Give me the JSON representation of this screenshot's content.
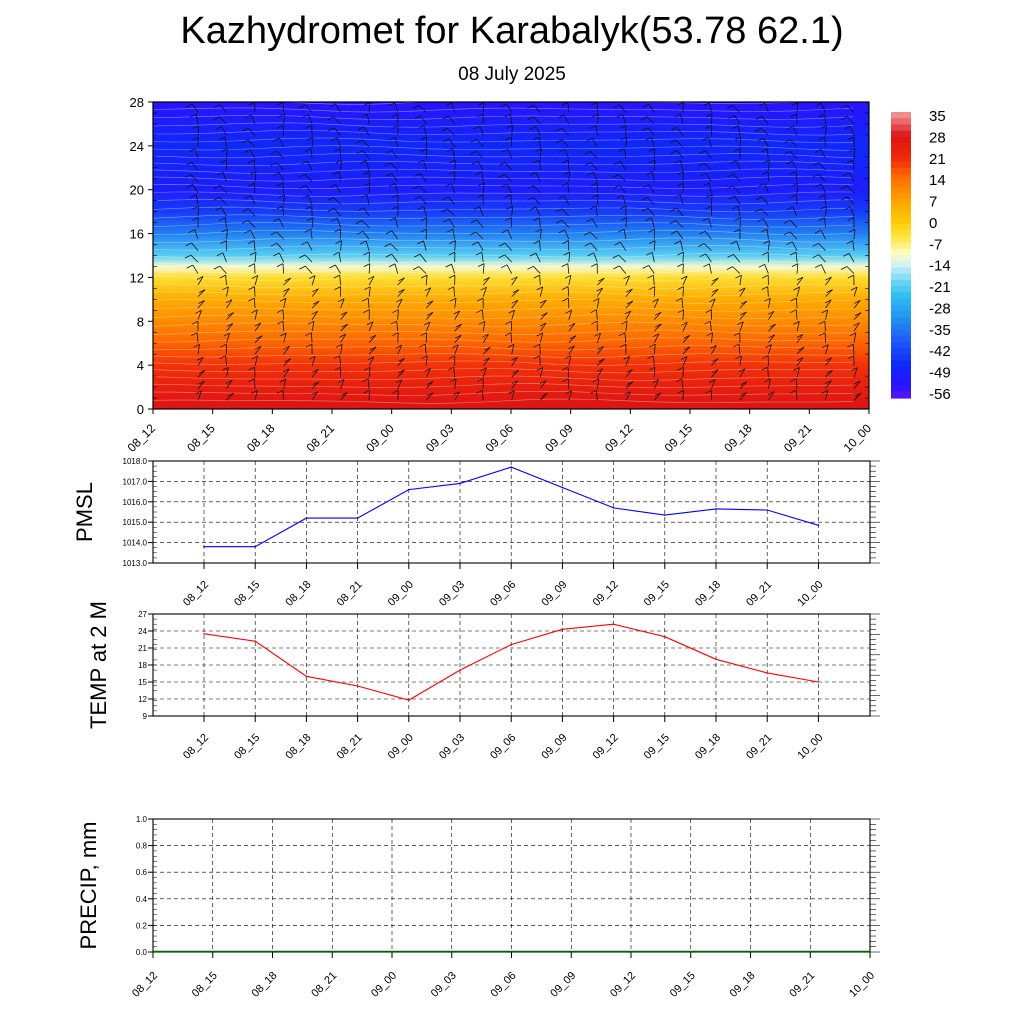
{
  "title": "Kazhydromet for Karabalyk(53.78 62.1)",
  "subtitle": "08 July 2025",
  "chart_data": [
    {
      "type": "heatmap",
      "title": "Kazhydromet for Karabalyk(53.78 62.1)",
      "subtitle": "08 July 2025",
      "x_labels": [
        "08_12",
        "08_15",
        "08_18",
        "08_21",
        "09_00",
        "09_03",
        "09_06",
        "09_09",
        "09_12",
        "09_15",
        "09_18",
        "09_21",
        "10_00"
      ],
      "y_ticks": [
        0,
        4,
        8,
        12,
        16,
        20,
        24,
        28
      ],
      "ylim": [
        0,
        28
      ],
      "colorbar_labels": [
        "35",
        "28",
        "21",
        "14",
        "7",
        "0",
        "-7",
        "-14",
        "-21",
        "-28",
        "-35",
        "-42",
        "-49",
        "-56"
      ],
      "temperature_profile": [
        {
          "level": 0,
          "value": 28
        },
        {
          "level": 2,
          "value": 24
        },
        {
          "level": 4,
          "value": 20
        },
        {
          "level": 6,
          "value": 15
        },
        {
          "level": 8,
          "value": 10
        },
        {
          "level": 10,
          "value": 5
        },
        {
          "level": 12,
          "value": -4
        },
        {
          "level": 13,
          "value": -12
        },
        {
          "level": 14,
          "value": -22
        },
        {
          "level": 16,
          "value": -35
        },
        {
          "level": 18,
          "value": -45
        },
        {
          "level": 20,
          "value": -52
        },
        {
          "level": 24,
          "value": -48
        },
        {
          "level": 28,
          "value": -55
        }
      ],
      "wind_barbs": true
    },
    {
      "type": "line",
      "ylabel": "PMSL",
      "categories": [
        "08_12",
        "08_15",
        "08_18",
        "08_21",
        "09_00",
        "09_03",
        "09_06",
        "09_09",
        "09_12",
        "09_15",
        "09_18",
        "09_21",
        "10_00"
      ],
      "values": [
        1013.8,
        1013.8,
        1015.2,
        1015.2,
        1016.6,
        1016.9,
        1017.7,
        1016.7,
        1015.7,
        1015.35,
        1015.65,
        1015.6,
        1014.85
      ],
      "ylim": [
        1013.0,
        1018.0
      ],
      "y_ticks": [
        "1013.0",
        "1014.0",
        "1015.0",
        "1016.0",
        "1017.0",
        "1018.0"
      ],
      "color": "#0000ff",
      "grid": true
    },
    {
      "type": "line",
      "ylabel": "TEMP at 2 M",
      "categories": [
        "08_12",
        "08_15",
        "08_18",
        "08_21",
        "09_00",
        "09_03",
        "09_06",
        "09_09",
        "09_12",
        "09_15",
        "09_18",
        "09_21",
        "10_00"
      ],
      "values": [
        23.5,
        22.2,
        16.0,
        14.3,
        11.8,
        17.1,
        21.6,
        24.3,
        25.2,
        23.0,
        19.0,
        16.6,
        15.0
      ],
      "ylim": [
        9,
        27
      ],
      "y_ticks": [
        "9",
        "12",
        "15",
        "18",
        "21",
        "24",
        "27"
      ],
      "color": "#ff0000",
      "grid": true
    },
    {
      "type": "bar",
      "ylabel": "PRECIP, mm",
      "categories": [
        "08_12",
        "08_15",
        "08_18",
        "08_21",
        "09_00",
        "09_03",
        "09_06",
        "09_09",
        "09_12",
        "09_15",
        "09_18",
        "09_21",
        "10_00"
      ],
      "values": [
        0,
        0,
        0,
        0,
        0,
        0,
        0,
        0,
        0,
        0,
        0,
        0,
        0
      ],
      "ylim": [
        0.0,
        1.0
      ],
      "y_ticks": [
        "0.0",
        "0.2",
        "0.4",
        "0.6",
        "0.8",
        "1.0"
      ],
      "color": "#006400",
      "grid": true
    }
  ]
}
